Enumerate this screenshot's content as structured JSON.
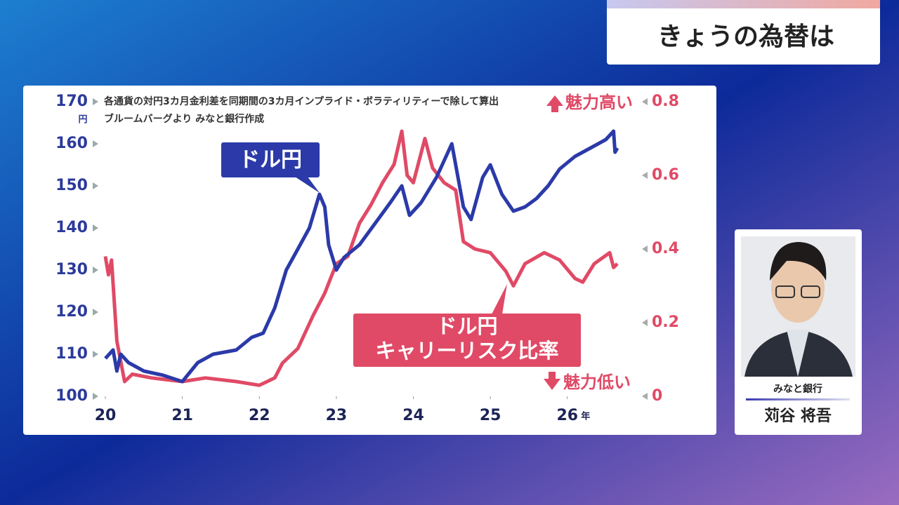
{
  "header": {
    "title": "きょうの為替は"
  },
  "chart_data": {
    "type": "line",
    "notes": [
      "各通貨の対円3カ月金利差を同期間の3カ月インプライド・ボラティリティーで除して算出",
      "ブルームバーグより みなと銀行作成"
    ],
    "y_unit": "円",
    "x_unit": "年",
    "y2_top_label": "魅力高い",
    "y2_bottom_label": "魅力低い",
    "xlim": [
      20,
      26.75
    ],
    "xticks": [
      20,
      21,
      22,
      23,
      24,
      25,
      26
    ],
    "ylim": [
      100,
      170
    ],
    "yticks": [
      100,
      110,
      120,
      130,
      140,
      150,
      160,
      170
    ],
    "y2lim": [
      0,
      0.8
    ],
    "y2ticks": [
      0,
      0.2,
      0.4,
      0.6,
      0.8
    ],
    "series": [
      {
        "name": [
          "ドル円"
        ],
        "color": "#2b3aa8",
        "x": [
          20,
          20.1,
          20.15,
          20.2,
          20.3,
          20.5,
          20.75,
          21.0,
          21.2,
          21.4,
          21.7,
          21.9,
          22.05,
          22.2,
          22.35,
          22.5,
          22.65,
          22.78,
          22.85,
          22.9,
          23.0,
          23.1,
          23.3,
          23.5,
          23.7,
          23.85,
          23.95,
          24.1,
          24.3,
          24.5,
          24.55,
          24.65,
          24.75,
          24.9,
          25.0,
          25.15,
          25.3,
          25.45,
          25.6,
          25.75,
          25.9,
          26.1,
          26.3,
          26.5,
          26.6,
          26.62,
          26.65
        ],
        "values": [
          109,
          111,
          106,
          110,
          108,
          106,
          105,
          103.5,
          108,
          110,
          111,
          114,
          115,
          121,
          130,
          135,
          140,
          148,
          145,
          136,
          130,
          133,
          136,
          141,
          146,
          150,
          143,
          146,
          152,
          160,
          155,
          145,
          142,
          152,
          155,
          148,
          144,
          145,
          147,
          150,
          154,
          157,
          159,
          161,
          163,
          158,
          159
        ]
      },
      {
        "name": [
          "ドル円",
          "キャリーリスク比率"
        ],
        "color": "#e04a66",
        "axis": "y2",
        "x": [
          20,
          20.04,
          20.08,
          20.15,
          20.25,
          20.35,
          20.6,
          21.0,
          21.3,
          21.7,
          22.0,
          22.2,
          22.3,
          22.5,
          22.7,
          22.85,
          23.0,
          23.15,
          23.3,
          23.45,
          23.6,
          23.75,
          23.85,
          23.92,
          24.0,
          24.15,
          24.25,
          24.4,
          24.55,
          24.65,
          24.8,
          25.0,
          25.2,
          25.3,
          25.45,
          25.7,
          25.9,
          26.1,
          26.2,
          26.35,
          26.55,
          26.6,
          26.65
        ],
        "values": [
          0.38,
          0.33,
          0.37,
          0.15,
          0.04,
          0.06,
          0.05,
          0.04,
          0.05,
          0.04,
          0.03,
          0.05,
          0.09,
          0.13,
          0.22,
          0.28,
          0.36,
          0.38,
          0.47,
          0.52,
          0.58,
          0.63,
          0.72,
          0.6,
          0.58,
          0.7,
          0.62,
          0.58,
          0.56,
          0.42,
          0.4,
          0.39,
          0.34,
          0.3,
          0.36,
          0.39,
          0.37,
          0.32,
          0.31,
          0.36,
          0.39,
          0.35,
          0.36
        ]
      }
    ]
  },
  "person": {
    "affiliation": "みなと銀行",
    "name": "苅谷 将吾"
  }
}
